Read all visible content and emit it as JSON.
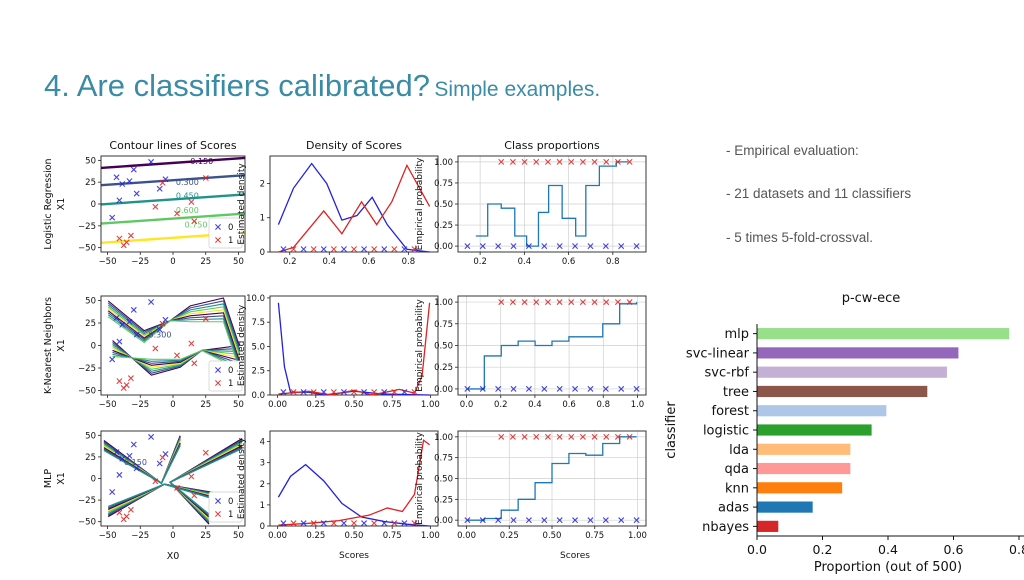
{
  "slide": {
    "title_main": "4. Are classifiers calibrated?",
    "title_sub": "Simple examples."
  },
  "bullets": [
    "- Empirical evaluation:",
    "- 21 datasets and 11 classifiers",
    "- 5 times 5-fold-crossval."
  ],
  "grid": {
    "column_titles": [
      "Contour lines of Scores",
      "Density of Scores",
      "Class proportions"
    ],
    "row_labels": [
      "Logistic Regression",
      "K-Nearest Neighbors",
      "MLP"
    ],
    "x1_label": "X1",
    "x0_label": "X0",
    "density_ylabel": "Estimated density",
    "prob_ylabel": "Empirical probability",
    "scores_label": "Scores",
    "legend_labels": [
      "0",
      "1"
    ],
    "contour_levels": [
      "0.150",
      "0.300",
      "0.450",
      "0.600",
      "0.750"
    ],
    "contour_ticks_x": [
      "−50",
      "−25",
      "0",
      "25",
      "50"
    ],
    "contour_ticks_y": [
      "50",
      "25",
      "0",
      "−25",
      "−50"
    ],
    "density_ticks_x_lr": [
      "0.2",
      "0.4",
      "0.6",
      "0.8"
    ],
    "density_ticks_x": [
      "0.00",
      "0.25",
      "0.50",
      "0.75",
      "1.00"
    ],
    "density_ticks_y": [
      [
        "0",
        "1",
        "2"
      ],
      [
        "0.0",
        "2.5",
        "5.0",
        "7.5",
        "10.0"
      ],
      [
        "0",
        "1",
        "2",
        "3",
        "4"
      ]
    ],
    "prob_ticks_y": [
      "0.00",
      "0.25",
      "0.50",
      "0.75",
      "1.00"
    ],
    "prob_ticks_x_lr": [
      "0.2",
      "0.4",
      "0.6",
      "0.8"
    ],
    "prob_ticks_x": [
      "0.0",
      "0.2",
      "0.4",
      "0.6",
      "0.8",
      "1.0"
    ],
    "prob_ticks_x_mlp": [
      "0.00",
      "0.25",
      "0.50",
      "0.75",
      "1.00"
    ]
  },
  "chart_data": {
    "type": "bar",
    "title": "p-cw-ece",
    "xlabel": "Proportion (out of 500)",
    "ylabel": "classifier",
    "xlim": [
      0,
      0.8
    ],
    "xticks": [
      "0.0",
      "0.2",
      "0.4",
      "0.6",
      "0.8"
    ],
    "categories": [
      "mlp",
      "svc-linear",
      "svc-rbf",
      "tree",
      "forest",
      "logistic",
      "lda",
      "qda",
      "knn",
      "adas",
      "nbayes"
    ],
    "values": [
      0.77,
      0.615,
      0.58,
      0.52,
      0.395,
      0.35,
      0.285,
      0.285,
      0.26,
      0.17,
      0.065
    ],
    "colors": [
      "#98df8a",
      "#9467bd",
      "#c5b0d5",
      "#8c564b",
      "#aec7e8",
      "#2ca02c",
      "#ffbb78",
      "#ff9896",
      "#ff7f0e",
      "#1f77b4",
      "#d62728"
    ]
  }
}
